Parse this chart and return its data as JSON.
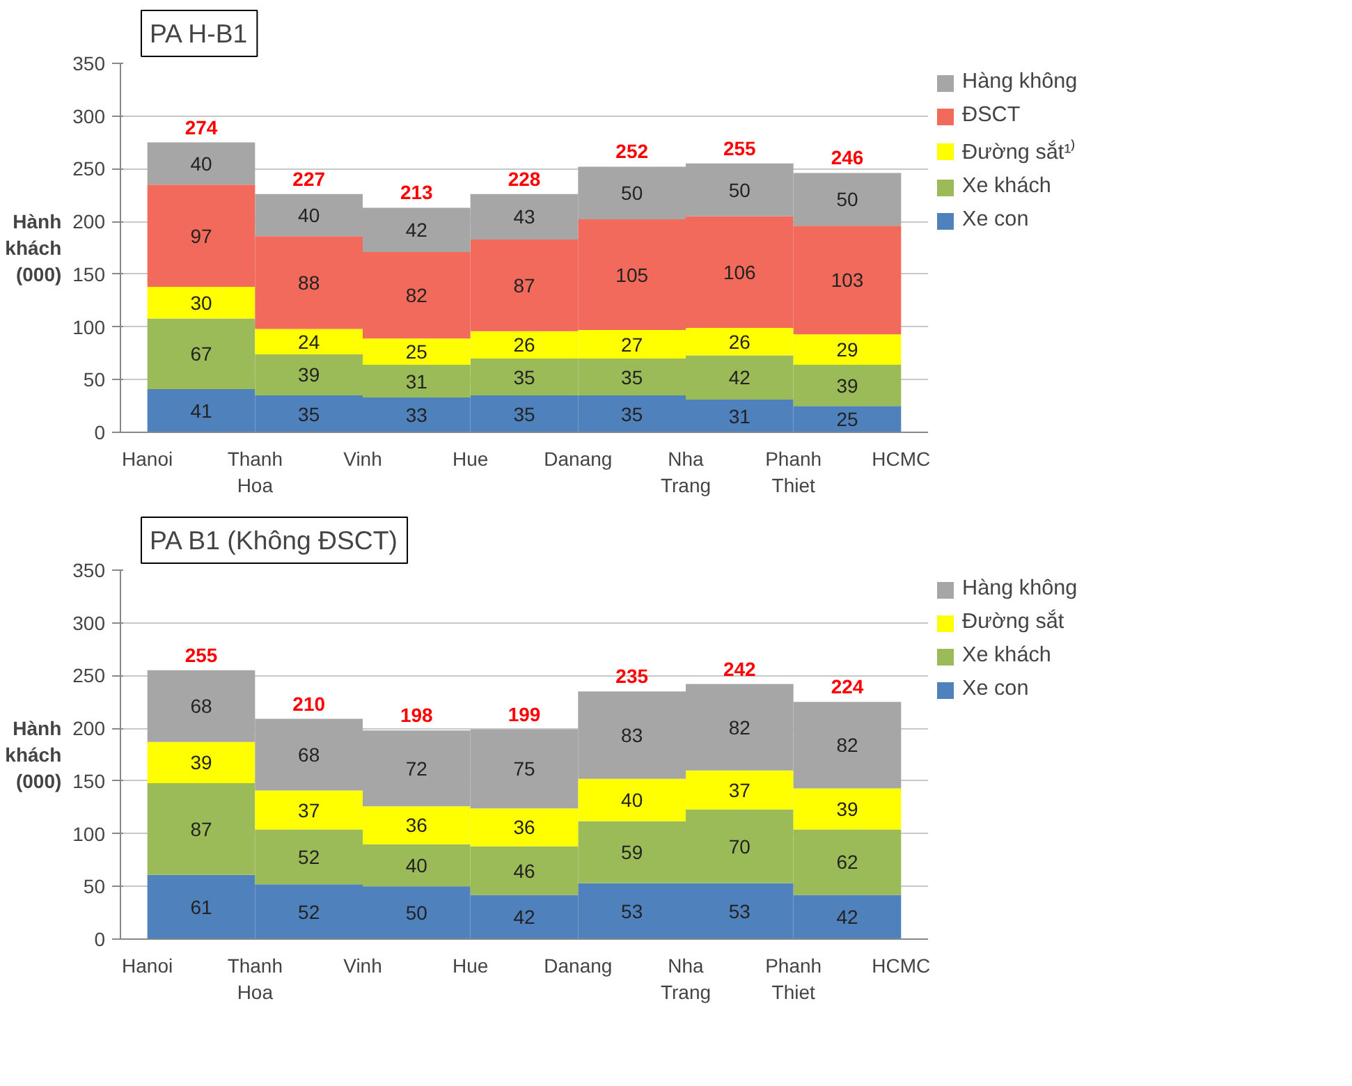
{
  "chart_data": [
    {
      "type": "bar",
      "stacked": true,
      "title": "PA H-B1",
      "ylabel": "Hành khách (000)",
      "categories": [
        "Hanoi",
        "Thanh\nHoa",
        "Vinh",
        "Hue",
        "Danang",
        "Nha\nTrang",
        "Phanh\nThiet",
        "HCMC"
      ],
      "ylim": [
        0,
        350
      ],
      "yticks": [
        0,
        50,
        100,
        150,
        200,
        250,
        300,
        350
      ],
      "grid": "y",
      "legend": "right",
      "data_labels": true,
      "totals": [
        "274",
        "227",
        "213",
        "228",
        "252",
        "255",
        "246"
      ],
      "series": [
        {
          "name": "Xe con",
          "color": "#4f81bd",
          "values": [
            41,
            35,
            33,
            35,
            35,
            31,
            25,
            null
          ]
        },
        {
          "name": "Xe khách",
          "color": "#9bbb59",
          "values": [
            67,
            39,
            31,
            35,
            35,
            42,
            39,
            null
          ]
        },
        {
          "name": "Đường sắt¹⁾",
          "color": "#ffff00",
          "values": [
            30,
            24,
            25,
            26,
            27,
            26,
            29,
            null
          ]
        },
        {
          "name": "ĐSCT",
          "color": "#f26a5c",
          "values": [
            97,
            88,
            82,
            87,
            105,
            106,
            103,
            null
          ]
        },
        {
          "name": "Hàng không",
          "color": "#a6a6a6",
          "values": [
            40,
            40,
            42,
            43,
            50,
            50,
            50,
            null
          ]
        }
      ]
    },
    {
      "type": "bar",
      "stacked": true,
      "title": "PA B1 (Không ĐSCT)",
      "ylabel": "Hành khách (000)",
      "categories": [
        "Hanoi",
        "Thanh\nHoa",
        "Vinh",
        "Hue",
        "Danang",
        "Nha\nTrang",
        "Phanh\nThiet",
        "HCMC"
      ],
      "ylim": [
        0,
        350
      ],
      "yticks": [
        0,
        50,
        100,
        150,
        200,
        250,
        300,
        350
      ],
      "grid": "y",
      "legend": "right",
      "data_labels": true,
      "totals": [
        "255",
        "210",
        "198",
        "199",
        "235",
        "242",
        "224"
      ],
      "series": [
        {
          "name": "Xe con",
          "color": "#4f81bd",
          "values": [
            61,
            52,
            50,
            42,
            53,
            53,
            42,
            null
          ]
        },
        {
          "name": "Xe khách",
          "color": "#9bbb59",
          "values": [
            87,
            52,
            40,
            46,
            59,
            70,
            62,
            null
          ]
        },
        {
          "name": "Đường sắt",
          "color": "#ffff00",
          "values": [
            39,
            37,
            36,
            36,
            40,
            37,
            39,
            null
          ]
        },
        {
          "name": "Hàng không",
          "color": "#a6a6a6",
          "values": [
            68,
            68,
            72,
            75,
            83,
            82,
            82,
            null
          ]
        }
      ]
    }
  ]
}
